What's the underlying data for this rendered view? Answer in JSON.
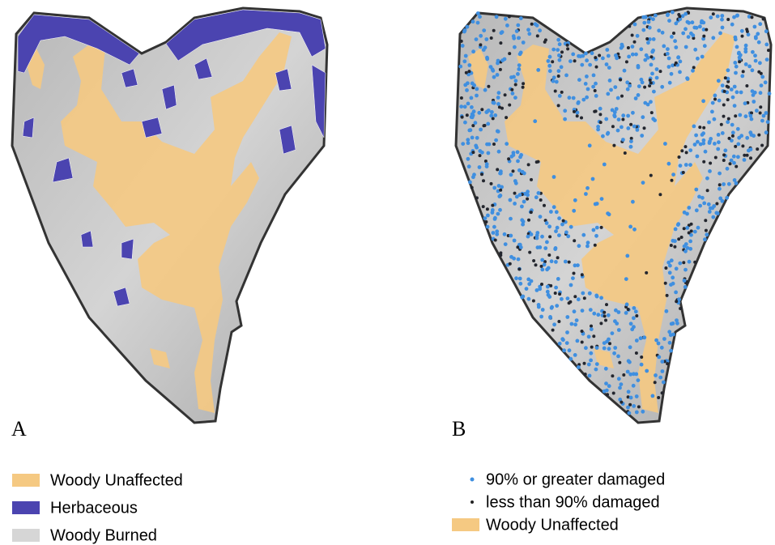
{
  "panels": [
    {
      "label": "A",
      "legend": [
        "Woody Unaffected",
        "Herbaceous",
        "Woody Burned"
      ]
    },
    {
      "label": "B",
      "legend": [
        "90% or greater damaged",
        "less than 90% damaged",
        "Woody Unaffected"
      ]
    }
  ]
}
